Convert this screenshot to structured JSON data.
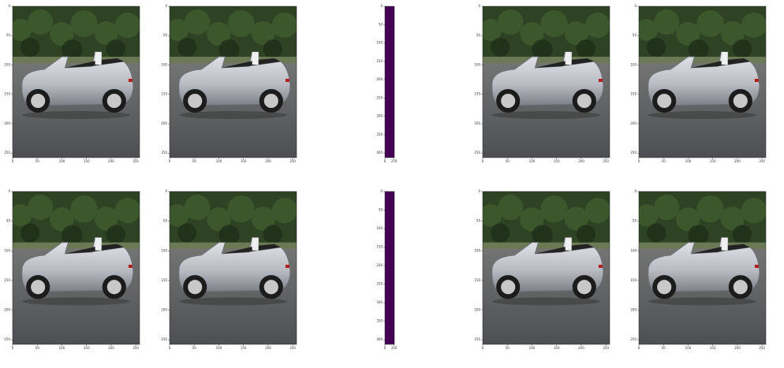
{
  "rows": [
    {
      "panels": [
        {
          "kind": "image",
          "xticks": [
            0,
            50,
            100,
            150,
            200,
            250
          ],
          "yticks": [
            0,
            50,
            100,
            150,
            200,
            250
          ]
        },
        {
          "kind": "image",
          "xticks": [
            0,
            50,
            100,
            150,
            200,
            250
          ],
          "yticks": [
            0,
            50,
            100,
            150,
            200,
            250
          ]
        },
        {
          "kind": "bar",
          "xticks": [
            0,
            250
          ],
          "yticks": [
            0,
            50,
            100,
            150,
            200,
            250,
            300,
            350,
            400
          ]
        },
        {
          "kind": "image",
          "xticks": [
            0,
            50,
            100,
            150,
            200,
            250
          ],
          "yticks": [
            0,
            50,
            100,
            150,
            200,
            250
          ]
        },
        {
          "kind": "image",
          "xticks": [
            0,
            50,
            100,
            150,
            200,
            250
          ],
          "yticks": [
            0,
            50,
            100,
            150,
            200,
            250
          ]
        }
      ]
    },
    {
      "panels": [
        {
          "kind": "image",
          "xticks": [
            0,
            50,
            100,
            150,
            200,
            250
          ],
          "yticks": [
            0,
            50,
            100,
            150,
            200,
            250
          ]
        },
        {
          "kind": "image",
          "xticks": [
            0,
            50,
            100,
            150,
            200,
            250
          ],
          "yticks": [
            0,
            50,
            100,
            150,
            200,
            250
          ]
        },
        {
          "kind": "bar",
          "xticks": [
            0,
            250
          ],
          "yticks": [
            0,
            50,
            100,
            150,
            200,
            250,
            300,
            350,
            400
          ]
        },
        {
          "kind": "image",
          "xticks": [
            0,
            50,
            100,
            150,
            200,
            250
          ],
          "yticks": [
            0,
            50,
            100,
            150,
            200,
            250
          ]
        },
        {
          "kind": "image",
          "xticks": [
            0,
            50,
            100,
            150,
            200,
            250
          ],
          "yticks": [
            0,
            50,
            100,
            150,
            200,
            250
          ]
        }
      ]
    }
  ]
}
